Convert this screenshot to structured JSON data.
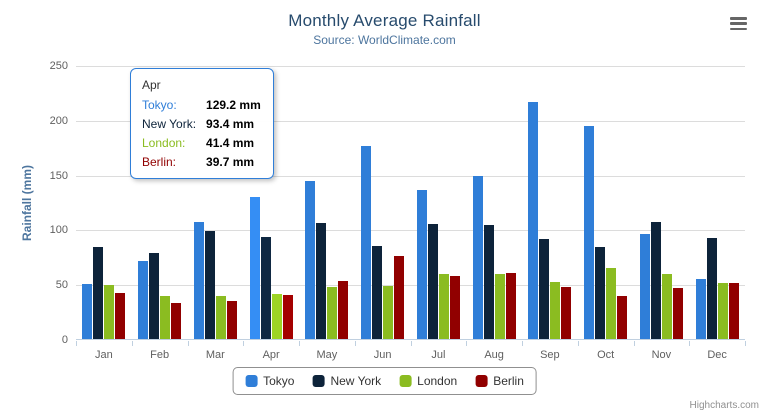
{
  "chart": {
    "title": "Monthly Average Rainfall",
    "subtitle": "Source: WorldClimate.com",
    "credits": "Highcharts.com"
  },
  "icons": {
    "menu": "hamburger-menu"
  },
  "chart_data": {
    "type": "bar",
    "title": "Monthly Average Rainfall",
    "subtitle": "Source: WorldClimate.com",
    "xlabel": "",
    "ylabel": "Rainfall (mm)",
    "ylim": [
      0,
      250
    ],
    "yticks": [
      0,
      50,
      100,
      150,
      200,
      250
    ],
    "grid": true,
    "legend_position": "bottom",
    "categories": [
      "Jan",
      "Feb",
      "Mar",
      "Apr",
      "May",
      "Jun",
      "Jul",
      "Aug",
      "Sep",
      "Oct",
      "Nov",
      "Dec"
    ],
    "series": [
      {
        "name": "Tokyo",
        "color": "#2f7ed8",
        "values": [
          49.9,
          71.5,
          106.4,
          129.2,
          144.0,
          176.0,
          135.6,
          148.5,
          216.4,
          194.1,
          95.6,
          54.4
        ]
      },
      {
        "name": "New York",
        "color": "#0d233a",
        "values": [
          83.6,
          78.8,
          98.5,
          93.4,
          106.0,
          84.5,
          105.0,
          104.3,
          91.2,
          83.5,
          106.6,
          92.3
        ]
      },
      {
        "name": "London",
        "color": "#8bbc21",
        "values": [
          48.9,
          38.8,
          39.3,
          41.4,
          47.0,
          48.3,
          59.0,
          59.6,
          52.4,
          65.2,
          59.3,
          51.2
        ]
      },
      {
        "name": "Berlin",
        "color": "#910000",
        "values": [
          42.4,
          33.2,
          34.5,
          39.7,
          52.6,
          75.5,
          57.4,
          60.4,
          47.6,
          39.1,
          46.8,
          51.1
        ]
      }
    ]
  },
  "tooltip": {
    "category": "Apr",
    "rows": [
      {
        "label": "Tokyo:",
        "value": "129.2 mm",
        "color": "#2f7ed8"
      },
      {
        "label": "New York:",
        "value": "93.4 mm",
        "color": "#0d233a"
      },
      {
        "label": "London:",
        "value": "41.4 mm",
        "color": "#8bbc21"
      },
      {
        "label": "Berlin:",
        "value": "39.7 mm",
        "color": "#910000"
      }
    ]
  }
}
